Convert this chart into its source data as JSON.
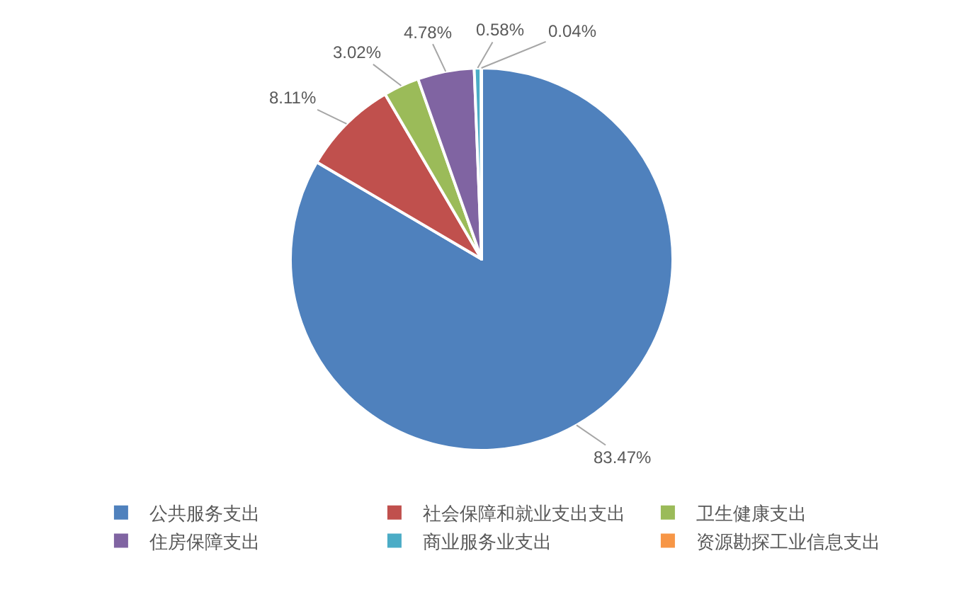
{
  "chart_data": {
    "type": "pie",
    "categories": [
      "公共服务支出",
      "社会保障和就业支出支出",
      "卫生健康支出",
      "住房保障支出",
      "商业服务业支出",
      "资源勘探工业信息支出"
    ],
    "values": [
      83.47,
      8.11,
      3.02,
      4.78,
      0.58,
      0.04
    ],
    "value_labels": [
      "83.47%",
      "8.11%",
      "3.02%",
      "4.78%",
      "0.58%",
      "0.04%"
    ],
    "colors": [
      "#4f81bd",
      "#c0504d",
      "#9bbb59",
      "#8064a2",
      "#4bacc6",
      "#f79646"
    ],
    "legend": "bottom"
  }
}
